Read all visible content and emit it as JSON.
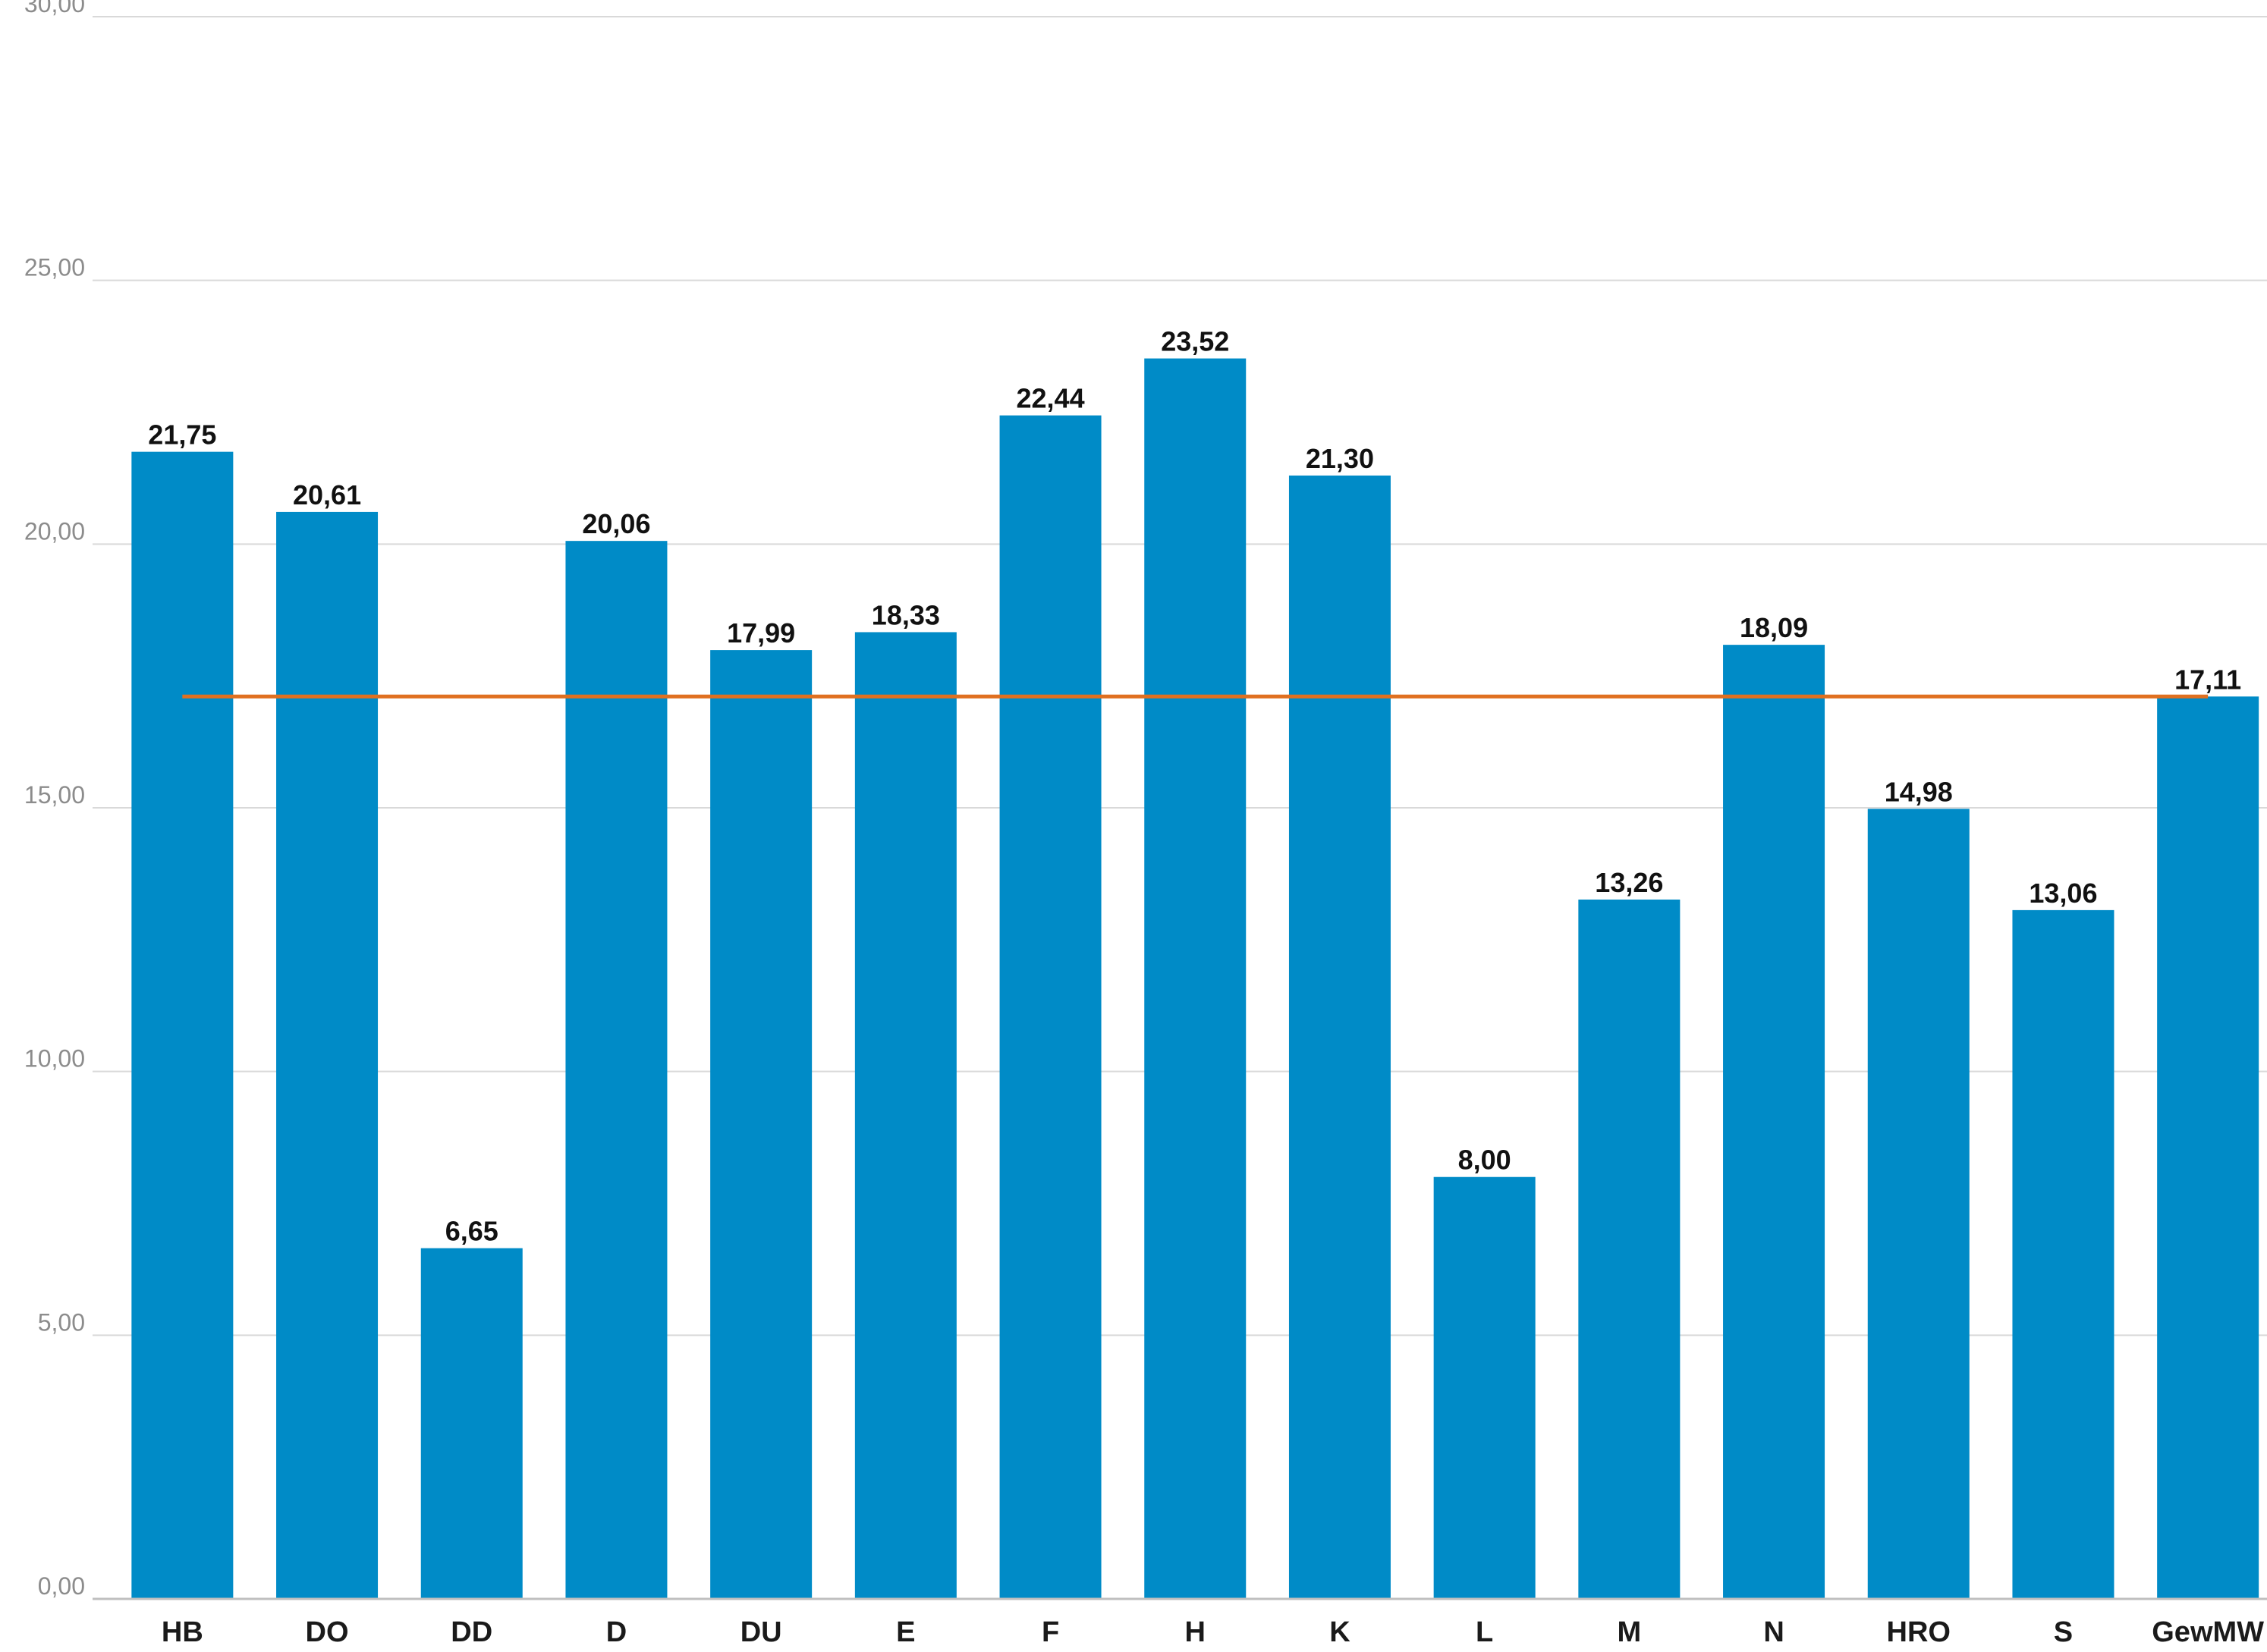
{
  "chart_data": {
    "type": "bar",
    "title": "",
    "xlabel": "",
    "ylabel": "",
    "categories": [
      "HB",
      "DO",
      "DD",
      "D",
      "DU",
      "E",
      "F",
      "H",
      "K",
      "L",
      "M",
      "N",
      "HRO",
      "S",
      "GewMW"
    ],
    "values": [
      21.75,
      20.61,
      6.65,
      20.06,
      17.99,
      18.33,
      22.44,
      23.52,
      21.3,
      8.0,
      13.26,
      18.09,
      14.98,
      13.06,
      17.11
    ],
    "value_labels": [
      "21,75",
      "20,61",
      "6,65",
      "20,06",
      "17,99",
      "18,33",
      "22,44",
      "23,52",
      "21,30",
      "8,00",
      "13,26",
      "18,09",
      "14,98",
      "13,06",
      "17,11"
    ],
    "ylim": [
      0,
      30
    ],
    "yticks": [
      0,
      5,
      10,
      15,
      20,
      25,
      30
    ],
    "ytick_labels": [
      "0,00",
      "5,00",
      "10,00",
      "15,00",
      "20,00",
      "25,00",
      "30,00"
    ],
    "grid": true,
    "reference_line": {
      "value": 17.11
    },
    "colors": {
      "bar": "#008bc7",
      "reference_line": "#e07020",
      "grid": "#d9d9d9"
    }
  }
}
